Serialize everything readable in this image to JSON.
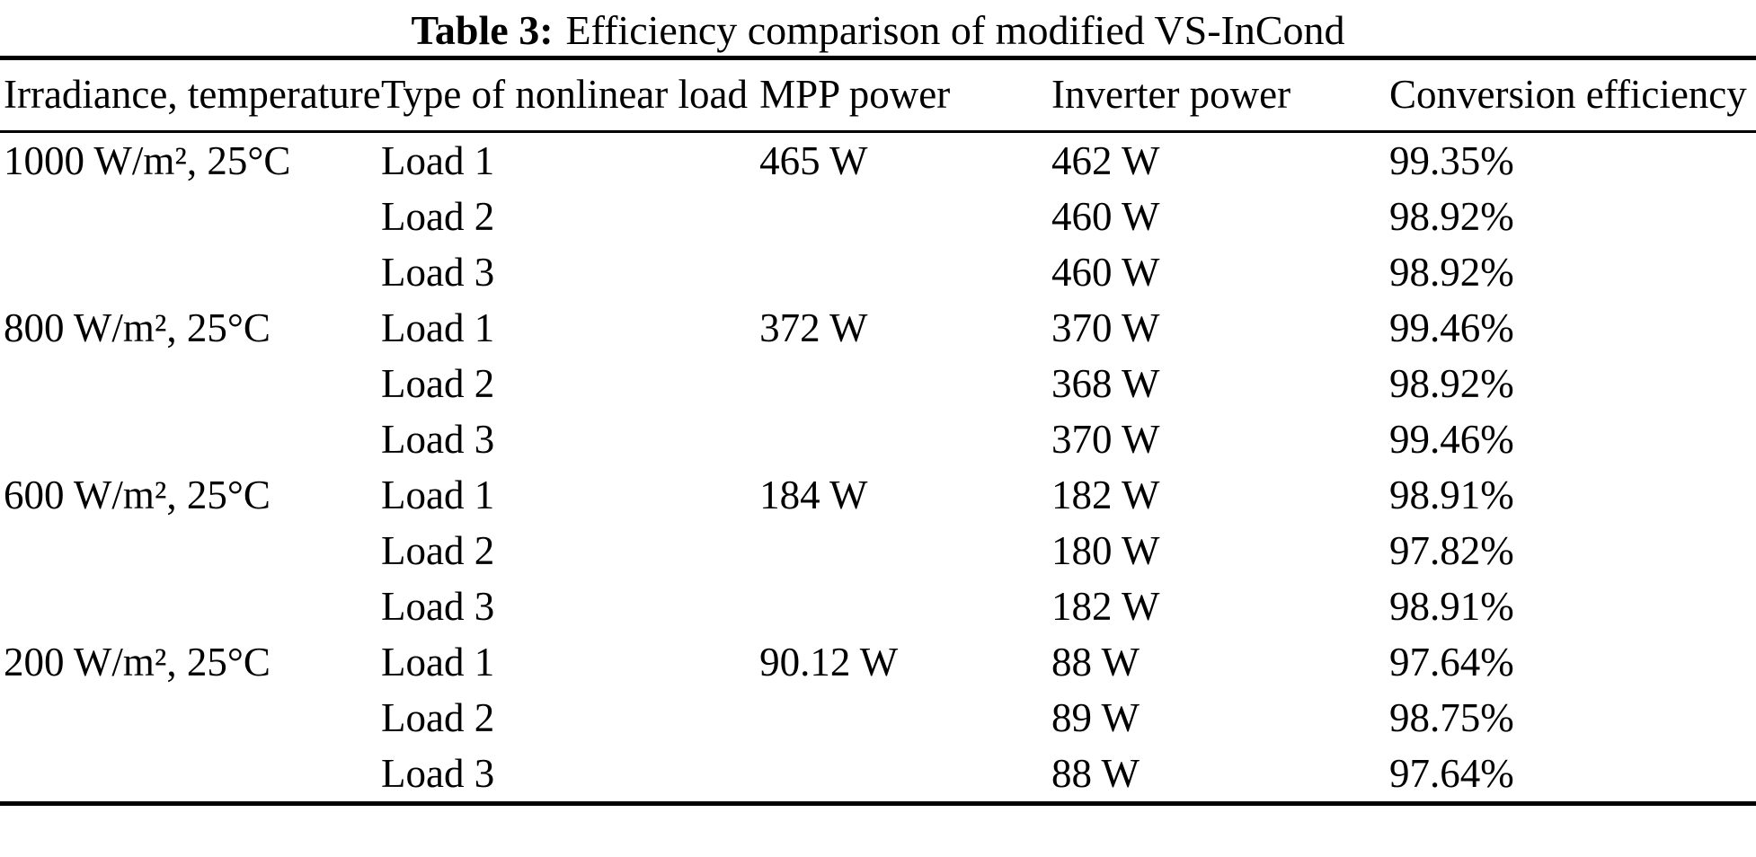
{
  "caption": {
    "label": "Table 3:",
    "text": "Efficiency comparison of modified VS-InCond"
  },
  "table": {
    "headers": [
      "Irradiance, temperature",
      "Type of nonlinear load",
      "MPP power",
      "Inverter power",
      "Conversion efficiency"
    ],
    "groups": [
      {
        "irradiance": "1000 W/m², 25°C",
        "mpp_power": "465 W",
        "rows": [
          {
            "load": "Load 1",
            "inverter_power": "462 W",
            "efficiency": "99.35%"
          },
          {
            "load": "Load 2",
            "inverter_power": "460 W",
            "efficiency": "98.92%"
          },
          {
            "load": "Load 3",
            "inverter_power": "460 W",
            "efficiency": "98.92%"
          }
        ]
      },
      {
        "irradiance": "800 W/m², 25°C",
        "mpp_power": "372 W",
        "rows": [
          {
            "load": "Load 1",
            "inverter_power": "370 W",
            "efficiency": "99.46%"
          },
          {
            "load": "Load 2",
            "inverter_power": "368 W",
            "efficiency": "98.92%"
          },
          {
            "load": "Load 3",
            "inverter_power": "370 W",
            "efficiency": "99.46%"
          }
        ]
      },
      {
        "irradiance": "600 W/m², 25°C",
        "mpp_power": "184 W",
        "rows": [
          {
            "load": "Load 1",
            "inverter_power": "182 W",
            "efficiency": "98.91%"
          },
          {
            "load": "Load 2",
            "inverter_power": "180 W",
            "efficiency": "97.82%"
          },
          {
            "load": "Load 3",
            "inverter_power": "182 W",
            "efficiency": "98.91%"
          }
        ]
      },
      {
        "irradiance": "200 W/m², 25°C",
        "mpp_power": "90.12 W",
        "rows": [
          {
            "load": "Load 1",
            "inverter_power": "88 W",
            "efficiency": "97.64%"
          },
          {
            "load": "Load 2",
            "inverter_power": "89 W",
            "efficiency": "98.75%"
          },
          {
            "load": "Load 3",
            "inverter_power": "88 W",
            "efficiency": "97.64%"
          }
        ]
      }
    ]
  },
  "colors": {
    "text": "#000000",
    "background": "#ffffff",
    "rule": "#000000"
  }
}
